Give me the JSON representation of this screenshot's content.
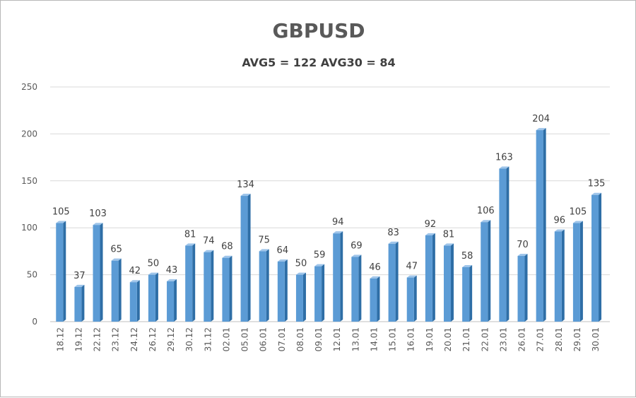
{
  "chart_data": {
    "type": "bar",
    "title": "GBPUSD",
    "subtitle": "AVG5 = 122 AVG30 = 84",
    "xlabel": "",
    "ylabel": "",
    "ylim": [
      0,
      250
    ],
    "yticks": [
      0,
      50,
      100,
      150,
      200,
      250
    ],
    "grid": true,
    "legend": "none",
    "categories": [
      "18.12",
      "19.12",
      "22.12",
      "23.12",
      "24.12",
      "26.12",
      "29.12",
      "30.12",
      "31.12",
      "02.01",
      "05.01",
      "06.01",
      "07.01",
      "08.01",
      "09.01",
      "12.01",
      "13.01",
      "14.01",
      "15.01",
      "16.01",
      "19.01",
      "20.01",
      "21.01",
      "22.01",
      "23.01",
      "26.01",
      "27.01",
      "28.01",
      "29.01",
      "30.01"
    ],
    "values": [
      105,
      37,
      103,
      65,
      42,
      50,
      43,
      81,
      74,
      68,
      134,
      75,
      64,
      50,
      59,
      94,
      69,
      46,
      83,
      47,
      92,
      81,
      58,
      106,
      163,
      70,
      204,
      96,
      105,
      135
    ],
    "colors": {
      "bar_front": "#5b9bd5",
      "bar_side": "#2e6ea6",
      "bar_top": "#9fc5ea",
      "grid": "#d9d9d9",
      "text": "#404040"
    }
  }
}
